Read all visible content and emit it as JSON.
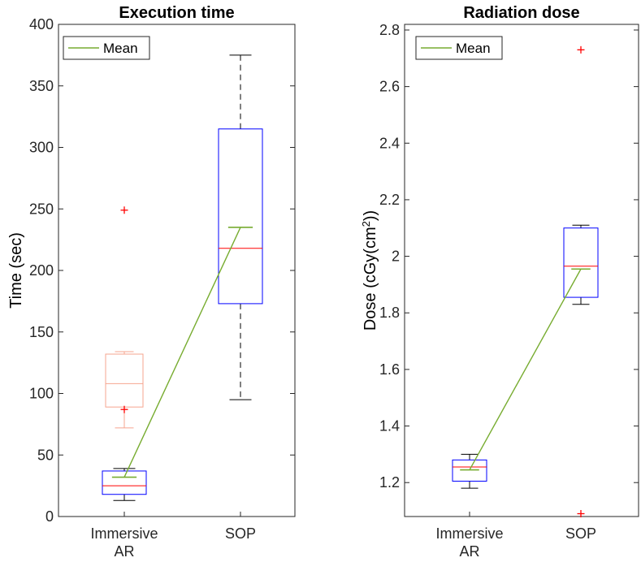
{
  "chart_data": [
    {
      "type": "box",
      "title": "Execution time",
      "ylabel": "Time (sec)",
      "ylim": [
        0,
        400
      ],
      "yticks": [
        0,
        50,
        100,
        150,
        200,
        250,
        300,
        350,
        400
      ],
      "ytick_labels": [
        "0",
        "50",
        "100",
        "150",
        "200",
        "250",
        "300",
        "350",
        "400"
      ],
      "categories": [
        "Immersive\nAR",
        "SOP"
      ],
      "legend": {
        "entries": [
          "Mean"
        ],
        "placement": "top-left"
      },
      "boxes": [
        {
          "category": "Immersive AR",
          "q1": 18,
          "median": 25,
          "q3": 37,
          "whisker_low": 13,
          "whisker_high": 39,
          "outliers": [],
          "color": "#0000ff"
        },
        {
          "category": "SOP",
          "q1": 173,
          "median": 218,
          "q3": 315,
          "whisker_low": 95,
          "whisker_high": 375,
          "outliers": [],
          "color": "#0000ff"
        }
      ],
      "faded_box": {
        "category": "Immersive AR",
        "q1": 89,
        "median": 108,
        "q3": 132,
        "whisker_low": 72,
        "whisker_high": 134,
        "outliers": [
          87
        ],
        "color": "#f6a58f"
      },
      "outliers_extra": [
        {
          "category": "Immersive AR",
          "value": 249
        }
      ],
      "means": [
        32,
        235
      ],
      "colors": {
        "box": "#0000ff",
        "median": "#ff0000",
        "mean": "#77ac30",
        "outlier": "#ff0000",
        "whisker": "#000000"
      }
    },
    {
      "type": "box",
      "title": "Radiation dose",
      "ylabel": "Dose (cGy(cm",
      "ylabel_sup": "2",
      "ylabel_end": "))",
      "ylim": [
        1.08,
        2.82
      ],
      "yticks": [
        1.2,
        1.4,
        1.6,
        1.8,
        2.0,
        2.2,
        2.4,
        2.6,
        2.8
      ],
      "ytick_labels": [
        "1.2",
        "1.4",
        "1.6",
        "1.8",
        "2",
        "2.2",
        "2.4",
        "2.6",
        "2.8"
      ],
      "categories": [
        "Immersive\nAR",
        "SOP"
      ],
      "legend": {
        "entries": [
          "Mean"
        ],
        "placement": "top-left"
      },
      "boxes": [
        {
          "category": "Immersive AR",
          "q1": 1.205,
          "median": 1.255,
          "q3": 1.28,
          "whisker_low": 1.18,
          "whisker_high": 1.3,
          "outliers": [],
          "color": "#0000ff"
        },
        {
          "category": "SOP",
          "q1": 1.855,
          "median": 1.965,
          "q3": 2.1,
          "whisker_low": 1.83,
          "whisker_high": 2.11,
          "outliers": [
            2.73,
            1.09
          ],
          "color": "#0000ff"
        }
      ],
      "means": [
        1.245,
        1.955
      ],
      "colors": {
        "box": "#0000ff",
        "median": "#ff0000",
        "mean": "#77ac30",
        "outlier": "#ff0000",
        "whisker": "#000000"
      }
    }
  ]
}
